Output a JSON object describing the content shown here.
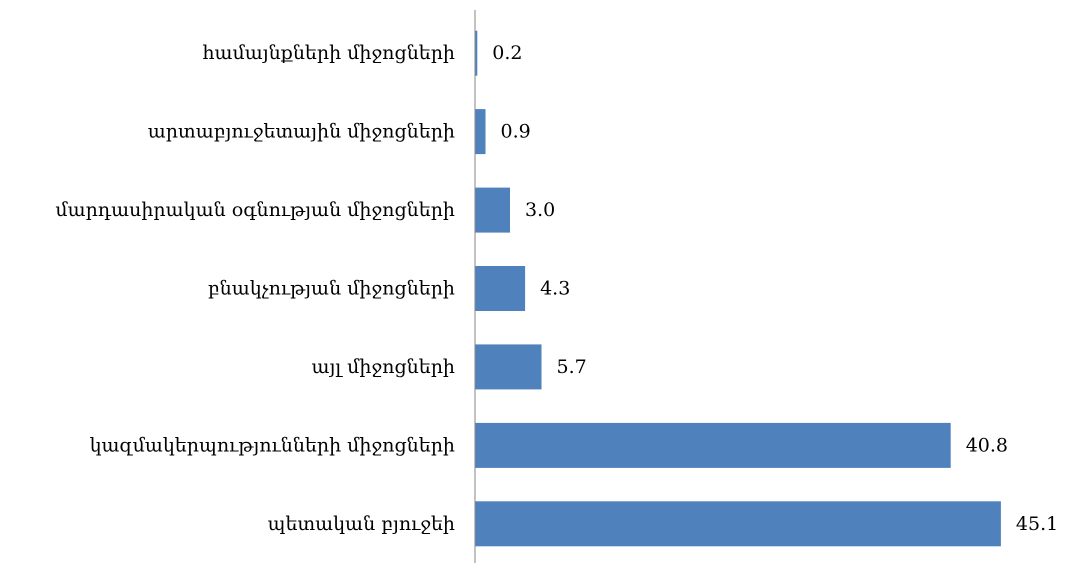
{
  "chart_data": {
    "type": "bar",
    "orientation": "horizontal",
    "title": "",
    "xlabel": "",
    "ylabel": "",
    "categories": [
      "համայնքների միջոցների",
      "արտաբյուջետային միջոցների",
      "մարդասիրական օգնության միջոցների",
      "բնակչության միջոցների",
      "այլ միջոցների",
      "կազմակերպությունների  միջոցների",
      "պետական բյուջեի"
    ],
    "values": [
      0.2,
      0.9,
      3.0,
      4.3,
      5.7,
      40.8,
      45.1
    ],
    "value_labels": [
      "0.2",
      "0.9",
      "3.0",
      "4.3",
      "5.7",
      "40.8",
      "45.1"
    ],
    "xlim": [
      0,
      47
    ],
    "grid": false,
    "legend": "none",
    "bar_color": "#4F81BD",
    "axis_color": "#868686"
  }
}
